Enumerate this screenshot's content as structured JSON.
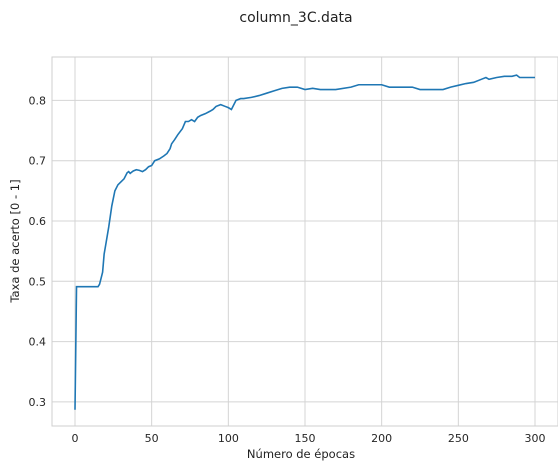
{
  "chart_data": {
    "type": "line",
    "title": "column_3C.data",
    "xlabel": "Número de épocas",
    "ylabel": "Taxa de acerto [0 - 1]",
    "xlim": [
      -15,
      315
    ],
    "ylim": [
      0.26,
      0.872
    ],
    "xticks": [
      0,
      50,
      100,
      150,
      200,
      250,
      300
    ],
    "yticks": [
      0.3,
      0.4,
      0.5,
      0.6,
      0.7,
      0.8
    ],
    "xtick_labels": [
      "0",
      "50",
      "100",
      "150",
      "200",
      "250",
      "300"
    ],
    "ytick_labels": [
      "0.3",
      "0.4",
      "0.5",
      "0.6",
      "0.7",
      "0.8"
    ],
    "grid": true,
    "line_color": "#1f77b4",
    "series": [
      {
        "x": [
          0,
          1,
          2,
          5,
          10,
          15,
          16,
          17,
          18,
          19,
          20,
          22,
          24,
          26,
          28,
          30,
          32,
          34,
          35,
          36,
          37,
          38,
          40,
          42,
          44,
          46,
          48,
          50,
          52,
          55,
          58,
          60,
          62,
          63,
          65,
          67,
          70,
          72,
          74,
          76,
          78,
          80,
          82,
          85,
          88,
          90,
          92,
          95,
          98,
          100,
          102,
          105,
          108,
          110,
          115,
          120,
          125,
          130,
          135,
          140,
          145,
          150,
          155,
          160,
          170,
          180,
          185,
          190,
          195,
          200,
          205,
          210,
          220,
          225,
          230,
          240,
          245,
          250,
          255,
          260,
          265,
          268,
          270,
          275,
          280,
          285,
          288,
          290,
          295,
          300
        ],
        "y": [
          0.287,
          0.491,
          0.491,
          0.491,
          0.491,
          0.491,
          0.495,
          0.505,
          0.515,
          0.545,
          0.56,
          0.59,
          0.625,
          0.65,
          0.66,
          0.665,
          0.67,
          0.68,
          0.682,
          0.679,
          0.681,
          0.683,
          0.685,
          0.684,
          0.682,
          0.685,
          0.69,
          0.692,
          0.7,
          0.703,
          0.708,
          0.712,
          0.72,
          0.728,
          0.735,
          0.743,
          0.753,
          0.765,
          0.765,
          0.768,
          0.765,
          0.772,
          0.775,
          0.778,
          0.782,
          0.785,
          0.79,
          0.793,
          0.79,
          0.788,
          0.785,
          0.8,
          0.803,
          0.803,
          0.805,
          0.808,
          0.812,
          0.816,
          0.82,
          0.822,
          0.822,
          0.818,
          0.82,
          0.818,
          0.818,
          0.822,
          0.826,
          0.826,
          0.826,
          0.826,
          0.822,
          0.822,
          0.822,
          0.818,
          0.818,
          0.818,
          0.822,
          0.825,
          0.828,
          0.83,
          0.835,
          0.838,
          0.835,
          0.838,
          0.84,
          0.84,
          0.842,
          0.838,
          0.838,
          0.838
        ]
      }
    ]
  }
}
